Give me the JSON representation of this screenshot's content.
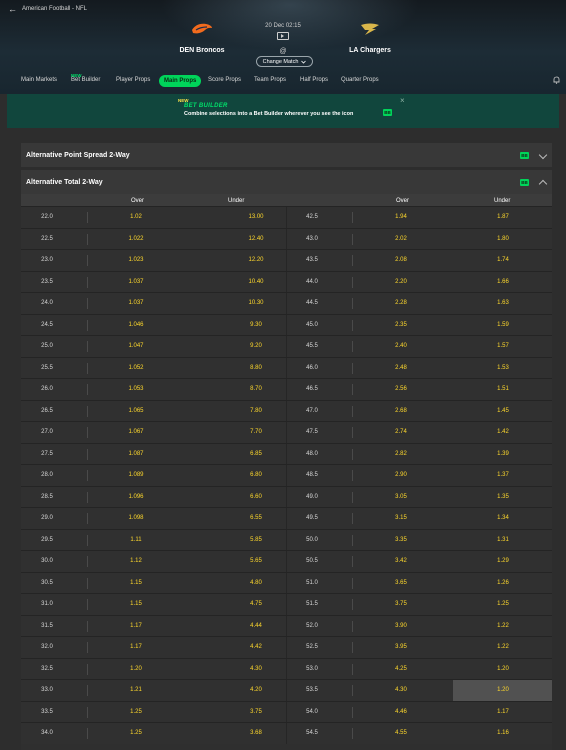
{
  "breadcrumb": {
    "text": "American Football - NFL"
  },
  "match": {
    "home": "DEN Broncos",
    "away": "LA Chargers",
    "datetime": "20 Dec 02:15",
    "vs": "@",
    "change_label": "Change Match"
  },
  "tabs": [
    {
      "label": "Main Markets"
    },
    {
      "label": "Bet Builder",
      "badge": "NEW"
    },
    {
      "label": "Player Props"
    },
    {
      "label": "Main Props",
      "active": true
    },
    {
      "label": "Score Props"
    },
    {
      "label": "Team Props"
    },
    {
      "label": "Half Props"
    },
    {
      "label": "Quarter Props"
    }
  ],
  "banner": {
    "badge": "NEW",
    "title": "BET BUILDER",
    "description": "Combine selections into a Bet Builder wherever you see the icon",
    "icon_text": "BB"
  },
  "markets": [
    {
      "title": "Alternative Point Spread 2-Way",
      "icon_text": "BB"
    },
    {
      "title": "Alternative Total 2-Way",
      "icon_text": "BB"
    }
  ],
  "table": {
    "headers": {
      "over": "Over",
      "under": "Under"
    },
    "left": [
      [
        "22.0",
        "1.02",
        "13.00"
      ],
      [
        "22.5",
        "1.022",
        "12.40"
      ],
      [
        "23.0",
        "1.023",
        "12.20"
      ],
      [
        "23.5",
        "1.037",
        "10.40"
      ],
      [
        "24.0",
        "1.037",
        "10.30"
      ],
      [
        "24.5",
        "1.046",
        "9.30"
      ],
      [
        "25.0",
        "1.047",
        "9.20"
      ],
      [
        "25.5",
        "1.052",
        "8.80"
      ],
      [
        "26.0",
        "1.053",
        "8.70"
      ],
      [
        "26.5",
        "1.065",
        "7.80"
      ],
      [
        "27.0",
        "1.067",
        "7.70"
      ],
      [
        "27.5",
        "1.087",
        "6.85"
      ],
      [
        "28.0",
        "1.089",
        "6.80"
      ],
      [
        "28.5",
        "1.096",
        "6.60"
      ],
      [
        "29.0",
        "1.098",
        "6.55"
      ],
      [
        "29.5",
        "1.11",
        "5.85"
      ],
      [
        "30.0",
        "1.12",
        "5.65"
      ],
      [
        "30.5",
        "1.15",
        "4.80"
      ],
      [
        "31.0",
        "1.15",
        "4.75"
      ],
      [
        "31.5",
        "1.17",
        "4.44"
      ],
      [
        "32.0",
        "1.17",
        "4.42"
      ],
      [
        "32.5",
        "1.20",
        "4.30"
      ],
      [
        "33.0",
        "1.21",
        "4.20"
      ],
      [
        "33.5",
        "1.25",
        "3.75"
      ],
      [
        "34.0",
        "1.25",
        "3.68"
      ]
    ],
    "right": [
      [
        "42.5",
        "1.94",
        "1.87"
      ],
      [
        "43.0",
        "2.02",
        "1.80"
      ],
      [
        "43.5",
        "2.08",
        "1.74"
      ],
      [
        "44.0",
        "2.20",
        "1.66"
      ],
      [
        "44.5",
        "2.28",
        "1.63"
      ],
      [
        "45.0",
        "2.35",
        "1.59"
      ],
      [
        "45.5",
        "2.40",
        "1.57"
      ],
      [
        "46.0",
        "2.48",
        "1.53"
      ],
      [
        "46.5",
        "2.56",
        "1.51"
      ],
      [
        "47.0",
        "2.68",
        "1.45"
      ],
      [
        "47.5",
        "2.74",
        "1.42"
      ],
      [
        "48.0",
        "2.82",
        "1.39"
      ],
      [
        "48.5",
        "2.90",
        "1.37"
      ],
      [
        "49.0",
        "3.05",
        "1.35"
      ],
      [
        "49.5",
        "3.15",
        "1.34"
      ],
      [
        "50.0",
        "3.35",
        "1.31"
      ],
      [
        "50.5",
        "3.42",
        "1.29"
      ],
      [
        "51.0",
        "3.65",
        "1.26"
      ],
      [
        "51.5",
        "3.75",
        "1.25"
      ],
      [
        "52.0",
        "3.90",
        "1.22"
      ],
      [
        "52.5",
        "3.95",
        "1.22"
      ],
      [
        "53.0",
        "4.25",
        "1.20"
      ],
      [
        "53.5",
        "4.30",
        "1.20"
      ],
      [
        "54.0",
        "4.46",
        "1.17"
      ],
      [
        "54.5",
        "4.55",
        "1.16"
      ]
    ],
    "highlighted_row": 22
  },
  "colors": {
    "accent": "#00d45a",
    "odds": "#ffd92c",
    "banner_bg": "#11463d",
    "home_logo": "#f26b1d",
    "away_logo": "#d9b64a"
  },
  "icons": [
    "back-arrow-icon",
    "broncos-logo-icon",
    "chargers-logo-icon",
    "tv-icon",
    "chevron-down-icon",
    "bell-icon",
    "close-icon",
    "bet-builder-icon"
  ]
}
